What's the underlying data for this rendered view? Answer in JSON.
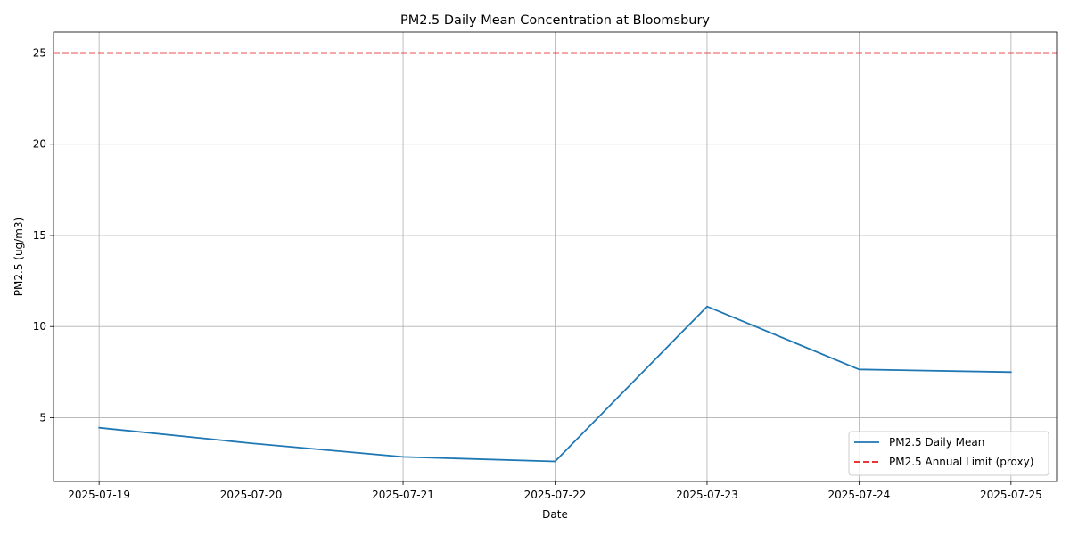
{
  "chart_data": {
    "type": "line",
    "title": "PM2.5 Daily Mean Concentration at Bloomsbury",
    "xlabel": "Date",
    "ylabel": "PM2.5 (ug/m3)",
    "x": [
      "2025-07-19",
      "2025-07-20",
      "2025-07-21",
      "2025-07-22",
      "2025-07-23",
      "2025-07-24",
      "2025-07-25"
    ],
    "xticks": [
      "2025-07-19",
      "2025-07-20",
      "2025-07-21",
      "2025-07-22",
      "2025-07-23",
      "2025-07-24",
      "2025-07-25"
    ],
    "series": [
      {
        "name": "PM2.5 Daily Mean",
        "values": [
          4.45,
          3.6,
          2.85,
          2.6,
          11.1,
          7.65,
          7.5
        ],
        "color": "#1f77b4",
        "style": "solid"
      }
    ],
    "hlines": [
      {
        "name": "PM2.5 Annual Limit (proxy)",
        "y": 25,
        "color": "#e41a1c",
        "style": "dashed"
      }
    ],
    "ylim": [
      1.5,
      26.15
    ],
    "yticks": [
      5,
      10,
      15,
      20,
      25
    ],
    "grid": true,
    "legend": "lower-right"
  }
}
